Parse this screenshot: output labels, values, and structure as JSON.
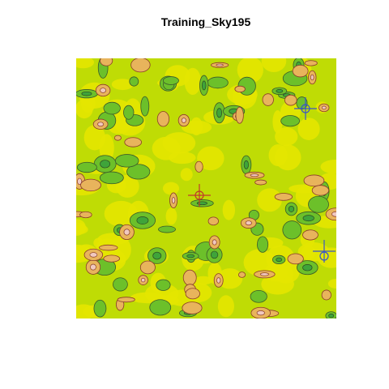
{
  "title": "Training_Sky195"
}
